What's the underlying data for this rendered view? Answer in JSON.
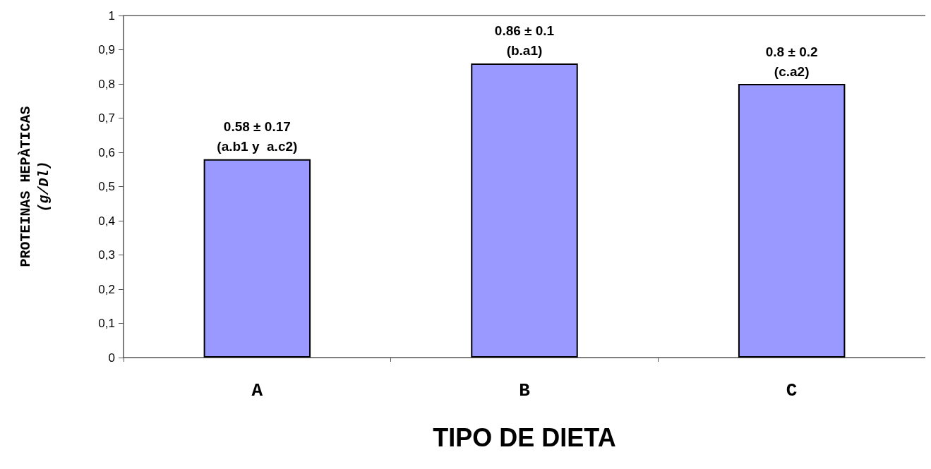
{
  "chart_data": {
    "type": "bar",
    "xlabel": "TIPO DE DIETA",
    "ylabel": "PROTEINAS HEPÀTICAS\n(g/Dl)",
    "categories": [
      "A",
      "B",
      "C"
    ],
    "values": [
      0.58,
      0.86,
      0.8
    ],
    "color": "#9999ff",
    "value_labels": [
      "0.58 ± 0.17\n(a.b1 y  a.c2)",
      "0.86 ± 0.1\n(b.a1)",
      "0.8 ± 0.2\n(c.a2)"
    ],
    "ylim": [
      0,
      1
    ],
    "yticks": [
      0,
      {
        "value": 0.1,
        "label": "0,1"
      },
      {
        "value": 0.2,
        "label": "0,2"
      },
      {
        "value": 0.3,
        "label": "0,3"
      },
      {
        "value": 0.4,
        "label": "0,4"
      },
      {
        "value": 0.5,
        "label": "0,5"
      },
      {
        "value": 0.6,
        "label": "0,6"
      },
      {
        "value": 0.7,
        "label": "0,7"
      },
      {
        "value": 0.8,
        "label": "0,8"
      },
      {
        "value": 0.9,
        "label": "0,9"
      },
      1
    ],
    "grid": false
  }
}
